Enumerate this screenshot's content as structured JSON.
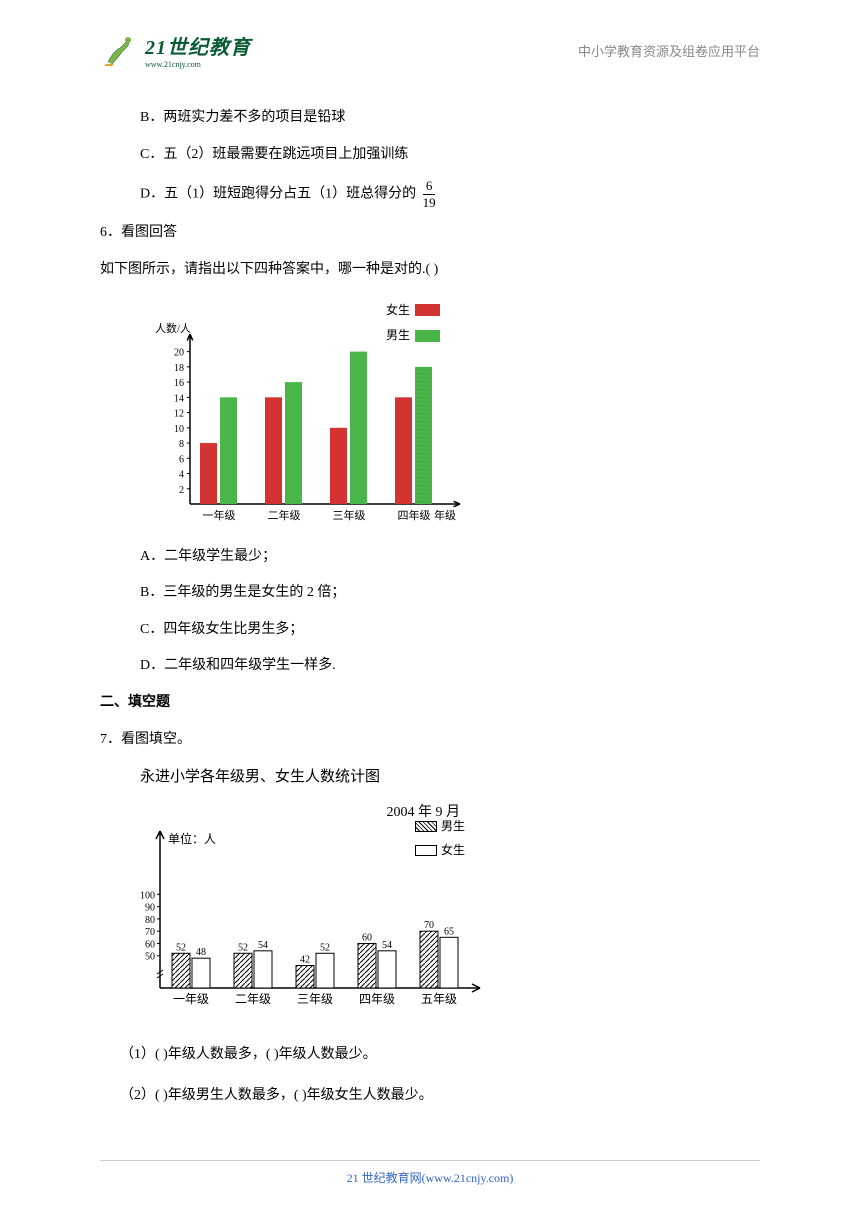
{
  "header": {
    "logo_main": "21世纪教育",
    "logo_sub": "www.21cnjy.com",
    "right_text": "中小学教育资源及组卷应用平台"
  },
  "options_top": {
    "b": "B．两班实力差不多的项目是铅球",
    "c": "C．五（2）班最需要在跳远项目上加强训练",
    "d_prefix": "D．五（1）班短跑得分占五（1）班总得分的",
    "d_frac_num": "6",
    "d_frac_den": "19"
  },
  "q6": {
    "title": "6．看图回答",
    "subtitle": "如下图所示，请指出以下四种答案中，哪一种是对的.( )",
    "options": {
      "a": "A．二年级学生最少；",
      "b": "B．三年级的男生是女生的 2 倍；",
      "c": "C．四年级女生比男生多；",
      "d": "D．二年级和四年级学生一样多."
    }
  },
  "chart1": {
    "ylabel": "人数/人",
    "legend_girl": "女生",
    "legend_boy": "男生",
    "girl_color": "#d43333",
    "boy_color": "#4ab64a",
    "categories": [
      "一年级",
      "二年级",
      "三年级",
      "四年级"
    ],
    "xlabel": "年级",
    "girl_values": [
      8,
      14,
      10,
      14
    ],
    "boy_values": [
      14,
      16,
      20,
      18
    ],
    "yticks": [
      2,
      4,
      6,
      8,
      10,
      12,
      14,
      16,
      18,
      20
    ],
    "ymax": 21,
    "axis_color": "#000000",
    "dashed_fill": true
  },
  "section2": {
    "title": "二、填空题"
  },
  "q7": {
    "title": "7．看图填空。",
    "chart_title": "永进小学各年级男、女生人数统计图",
    "date": "2004 年 9 月",
    "legend_boy": "男生",
    "legend_girl": "女生",
    "ylabel": "单位：人",
    "categories": [
      "一年级",
      "二年级",
      "三年级",
      "四年级",
      "五年级"
    ],
    "boy_values": [
      52,
      52,
      42,
      60,
      70
    ],
    "girl_values": [
      48,
      54,
      52,
      54,
      65
    ],
    "yticks": [
      50,
      60,
      70,
      80,
      90,
      100
    ],
    "sub1": "（1）(       )年级人数最多，(       )年级人数最少。",
    "sub2": "（2）(       )年级男生人数最多，(       )年级女生人数最少。"
  },
  "footer": {
    "text_main": "21 世纪教育网",
    "text_url": "(www.21cnjy.com)"
  }
}
